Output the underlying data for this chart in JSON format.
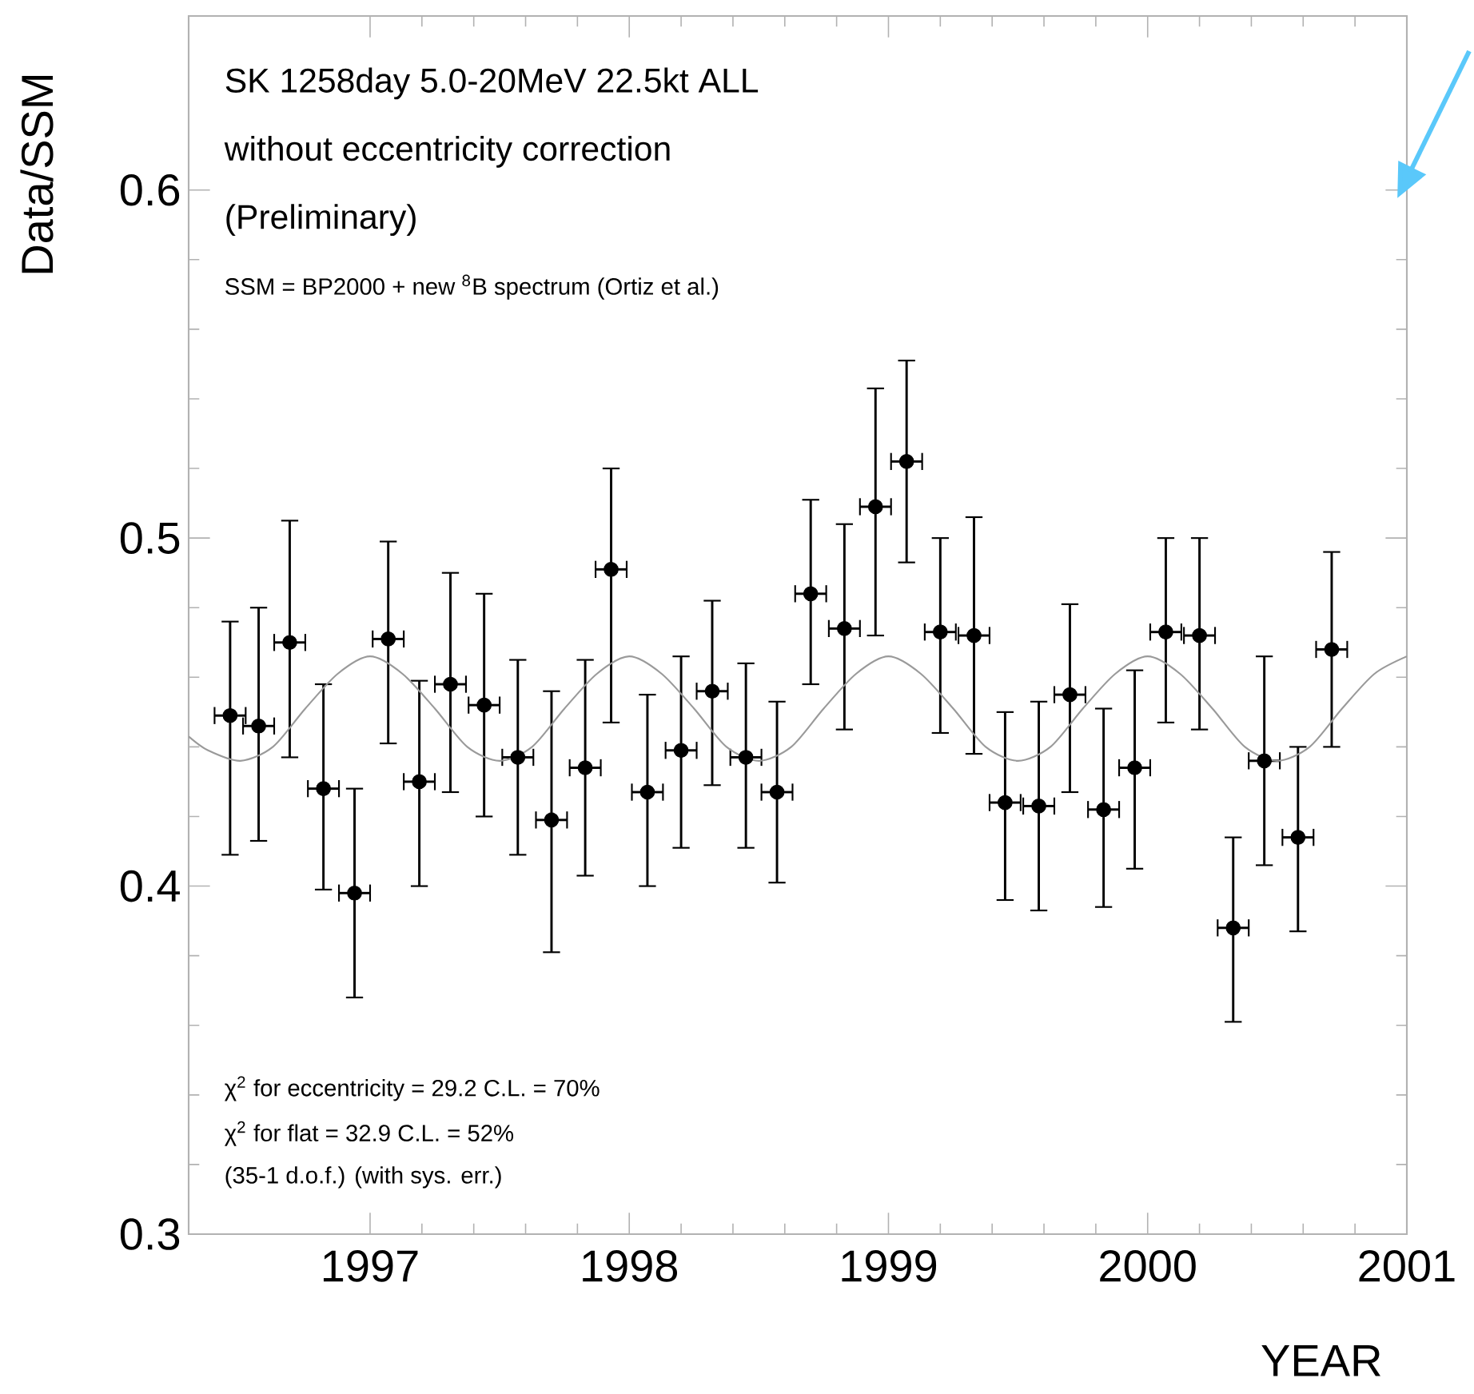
{
  "chart_data": {
    "type": "scatter",
    "xlabel": "YEAR",
    "ylabel": "Data/SSM",
    "xlim": [
      1996.3,
      2001
    ],
    "ylim": [
      0.3,
      0.65
    ],
    "xticks": [
      1997,
      1998,
      1999,
      2000,
      2001
    ],
    "yticks": [
      0.3,
      0.4,
      0.5,
      0.6
    ],
    "annotations": [
      "SK  1258day  5.0-20MeV  22.5kt  ALL",
      "without eccentricity correction",
      "(Preliminary)",
      "SSM = BP2000 + new $^{8}$B spectrum (Ortiz et al.)",
      "χ$^{2}$ for eccentricity = 29.2   C.L. = 70%",
      "χ$^{2}$ for flat = 32.9   C.L. = 52%",
      "(35-1 d.o.f.) (with sys. err.)"
    ],
    "series": [
      {
        "color": "#000000",
        "marker": "circle",
        "x": [
          1996.46,
          1996.57,
          1996.69,
          1996.82,
          1996.94,
          1997.07,
          1997.19,
          1997.31,
          1997.44,
          1997.57,
          1997.7,
          1997.83,
          1997.93,
          1998.07,
          1998.2,
          1998.32,
          1998.45,
          1998.57,
          1998.7,
          1998.83,
          1998.95,
          1999.07,
          1999.2,
          1999.33,
          1999.45,
          1999.58,
          1999.7,
          1999.83,
          1999.95,
          2000.07,
          2000.2,
          2000.33,
          2000.45,
          2000.58,
          2000.71
        ],
        "values": [
          0.449,
          0.446,
          0.47,
          0.428,
          0.398,
          0.471,
          0.43,
          0.458,
          0.452,
          0.437,
          0.419,
          0.434,
          0.491,
          0.427,
          0.439,
          0.456,
          0.437,
          0.427,
          0.484,
          0.474,
          0.509,
          0.522,
          0.473,
          0.472,
          0.424,
          0.423,
          0.455,
          0.422,
          0.434,
          0.473,
          0.472,
          0.388,
          0.436,
          0.414,
          0.468
        ],
        "errors": [
          [
            0.409,
            0.476
          ],
          [
            0.413,
            0.48
          ],
          [
            0.437,
            0.505
          ],
          [
            0.399,
            0.458
          ],
          [
            0.368,
            0.428
          ],
          [
            0.441,
            0.499
          ],
          [
            0.4,
            0.459
          ],
          [
            0.427,
            0.49
          ],
          [
            0.42,
            0.484
          ],
          [
            0.409,
            0.465
          ],
          [
            0.381,
            0.456
          ],
          [
            0.403,
            0.465
          ],
          [
            0.447,
            0.52
          ],
          [
            0.4,
            0.455
          ],
          [
            0.411,
            0.466
          ],
          [
            0.429,
            0.482
          ],
          [
            0.411,
            0.464
          ],
          [
            0.401,
            0.453
          ],
          [
            0.458,
            0.511
          ],
          [
            0.445,
            0.504
          ],
          [
            0.472,
            0.543
          ],
          [
            0.493,
            0.551
          ],
          [
            0.444,
            0.5
          ],
          [
            0.438,
            0.506
          ],
          [
            0.396,
            0.45
          ],
          [
            0.393,
            0.453
          ],
          [
            0.427,
            0.481
          ],
          [
            0.394,
            0.451
          ],
          [
            0.405,
            0.462
          ],
          [
            0.447,
            0.5
          ],
          [
            0.445,
            0.5
          ],
          [
            0.361,
            0.414
          ],
          [
            0.406,
            0.466
          ],
          [
            0.387,
            0.44
          ],
          [
            0.44,
            0.496
          ]
        ],
        "xerrors": [
          0.06,
          0.06,
          0.06,
          0.06,
          0.06,
          0.06,
          0.06,
          0.06,
          0.06,
          0.06,
          0.06,
          0.06,
          0.06,
          0.06,
          0.06,
          0.06,
          0.06,
          0.06,
          0.06,
          0.06,
          0.06,
          0.06,
          0.06,
          0.06,
          0.06,
          0.06,
          0.06,
          0.06,
          0.06,
          0.06,
          0.06,
          0.06,
          0.06,
          0.06,
          0.06
        ]
      },
      {
        "type": "line",
        "color": "#9a9a9a",
        "marker": "none",
        "x": [
          1996.3,
          1996.375,
          1996.5,
          1996.625,
          1996.75,
          1996.875,
          1997,
          1997.125,
          1997.25,
          1997.375,
          1997.5,
          1997.625,
          1997.75,
          1997.875,
          1998,
          1998.125,
          1998.25,
          1998.375,
          1998.5,
          1998.625,
          1998.75,
          1998.875,
          1999,
          1999.125,
          1999.25,
          1999.375,
          1999.5,
          1999.625,
          1999.75,
          1999.875,
          2000,
          2000.125,
          2000.25,
          2000.375,
          2000.5,
          2000.625,
          2000.75,
          2000.875,
          2001
        ],
        "values": [
          0.443,
          0.439,
          0.436,
          0.44,
          0.451,
          0.461,
          0.466,
          0.461,
          0.451,
          0.44,
          0.436,
          0.44,
          0.451,
          0.461,
          0.466,
          0.461,
          0.451,
          0.44,
          0.436,
          0.44,
          0.451,
          0.461,
          0.466,
          0.461,
          0.451,
          0.44,
          0.436,
          0.44,
          0.451,
          0.461,
          0.466,
          0.461,
          0.451,
          0.44,
          0.436,
          0.44,
          0.451,
          0.461,
          0.466
        ]
      }
    ]
  }
}
